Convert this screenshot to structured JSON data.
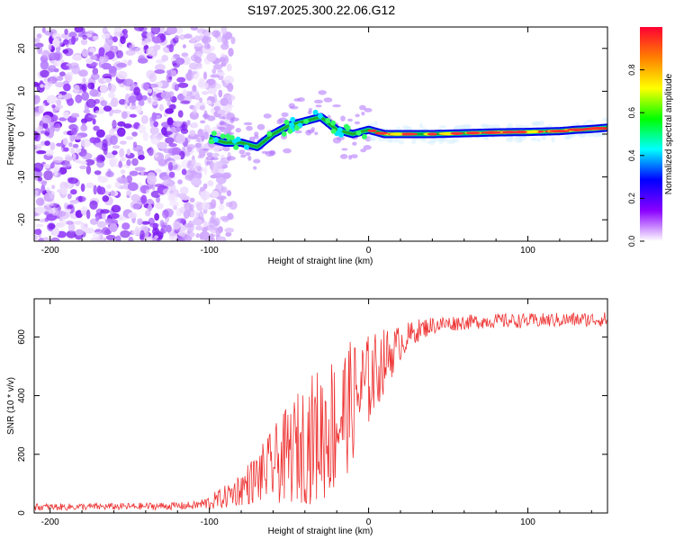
{
  "title": "S197.2025.300.22.06.G12",
  "chart_data": [
    {
      "type": "heatmap",
      "xlabel": "Height of straight line (km)",
      "ylabel": "Frequency (Hz)",
      "xlim": [
        -210,
        150
      ],
      "ylim": [
        -25,
        25
      ],
      "xticks": [
        -200,
        -100,
        0,
        100
      ],
      "yticks": [
        -20,
        -10,
        0,
        10,
        20
      ],
      "colorbar": {
        "label": "Normalized spectral amplitude",
        "range": [
          0,
          1
        ],
        "ticks": [
          "0.0",
          "0.2",
          "0.4",
          "0.6",
          "0.8"
        ],
        "colors": [
          "#ffffff",
          "#8a00ff",
          "#0000ff",
          "#00ffff",
          "#00ff00",
          "#ffff00",
          "#ff8000",
          "#ff0033"
        ]
      },
      "ridge": {
        "x": [
          -100,
          -90,
          -80,
          -70,
          -60,
          -50,
          -40,
          -30,
          -20,
          -10,
          0,
          10,
          20,
          40,
          60,
          80,
          100,
          120,
          130,
          140,
          150
        ],
        "freq": [
          -1,
          -2,
          -2,
          -3,
          0,
          2,
          3,
          4,
          1,
          0,
          1,
          0,
          0,
          0,
          0.2,
          0.4,
          0.5,
          0.7,
          1.0,
          1.2,
          1.5
        ]
      }
    },
    {
      "type": "line",
      "xlabel": "Height of straight line (km)",
      "ylabel": "SNR (10 * v/v)",
      "xlim": [
        -210,
        150
      ],
      "ylim": [
        0,
        730
      ],
      "xticks": [
        -200,
        -100,
        0,
        100
      ],
      "yticks": [
        0,
        200,
        400,
        600
      ],
      "color": "#ee3333",
      "envelope_x": [
        -210,
        -150,
        -110,
        -100,
        -90,
        -80,
        -70,
        -60,
        -50,
        -40,
        -30,
        -20,
        -10,
        0,
        10,
        20,
        30,
        40,
        60,
        80,
        100,
        120,
        150
      ],
      "envelope_mean": [
        20,
        22,
        25,
        35,
        55,
        85,
        120,
        160,
        200,
        240,
        270,
        310,
        380,
        450,
        520,
        580,
        620,
        640,
        650,
        655,
        655,
        658,
        660
      ],
      "envelope_spread": [
        12,
        12,
        14,
        25,
        40,
        60,
        90,
        130,
        170,
        210,
        240,
        250,
        210,
        160,
        110,
        60,
        40,
        30,
        25,
        25,
        25,
        25,
        25
      ]
    }
  ]
}
